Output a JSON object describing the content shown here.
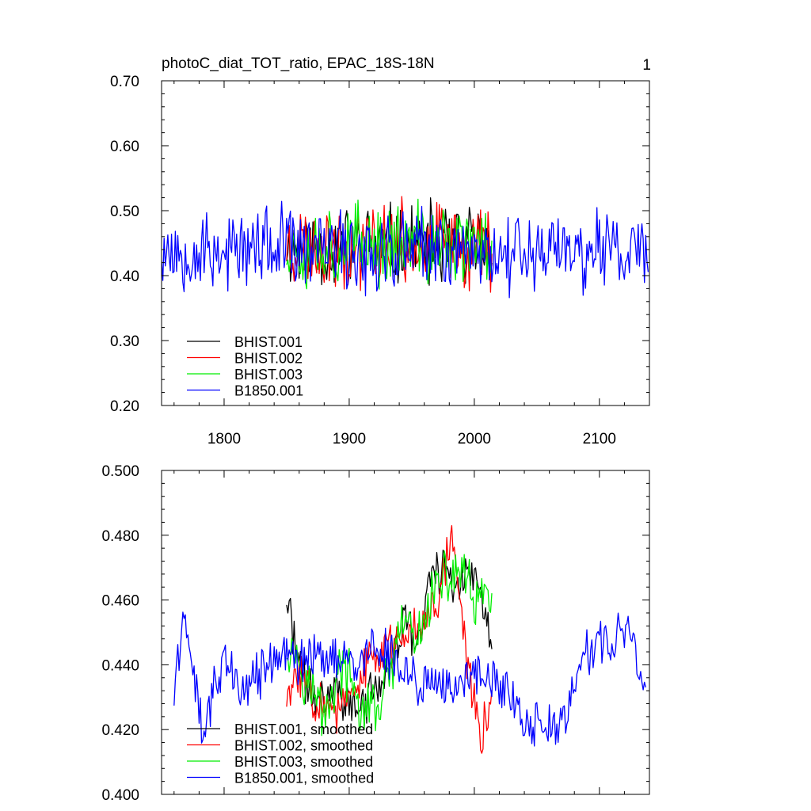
{
  "chart_data": [
    {
      "type": "line",
      "title": "photoC_diat_TOT_ratio, EPAC_18S-18N",
      "page_number": "1",
      "xlim": [
        1750,
        2140
      ],
      "ylim": [
        0.2,
        0.7
      ],
      "x_ticks": [
        "1800",
        "1900",
        "2000",
        "2100"
      ],
      "y_ticks": [
        "0.20",
        "0.30",
        "0.40",
        "0.50",
        "0.60",
        "0.70"
      ],
      "legend_position": "lower-left",
      "series": [
        {
          "name": "BHIST.001",
          "color": "#000000",
          "x_start": 1850,
          "x_end": 2014,
          "mean": 0.445,
          "amplitude": 0.078,
          "seed": 11
        },
        {
          "name": "BHIST.002",
          "color": "#ff0000",
          "x_start": 1850,
          "x_end": 2014,
          "mean": 0.448,
          "amplitude": 0.078,
          "seed": 23
        },
        {
          "name": "BHIST.003",
          "color": "#00ee00",
          "x_start": 1850,
          "x_end": 2014,
          "mean": 0.447,
          "amplitude": 0.078,
          "seed": 37
        },
        {
          "name": "B1850.001",
          "color": "#0000ff",
          "x_start": 1750,
          "x_end": 2139,
          "mean": 0.44,
          "amplitude": 0.078,
          "seed": 53
        }
      ]
    },
    {
      "type": "line",
      "title": "",
      "xlim": [
        1750,
        2140
      ],
      "ylim": [
        0.4,
        0.5
      ],
      "y_ticks": [
        "0.400",
        "0.420",
        "0.440",
        "0.460",
        "0.480",
        "0.500"
      ],
      "legend_position": "lower-left",
      "series": [
        {
          "name": "BHIST.001, smoothed",
          "color": "#000000",
          "x_start": 1850,
          "x_end": 2014,
          "anchors": [
            [
              1850,
              0.46
            ],
            [
              1860,
              0.44
            ],
            [
              1875,
              0.428
            ],
            [
              1890,
              0.434
            ],
            [
              1905,
              0.425
            ],
            [
              1920,
              0.432
            ],
            [
              1935,
              0.44
            ],
            [
              1945,
              0.455
            ],
            [
              1955,
              0.445
            ],
            [
              1965,
              0.468
            ],
            [
              1975,
              0.47
            ],
            [
              1985,
              0.465
            ],
            [
              1995,
              0.47
            ],
            [
              2005,
              0.46
            ],
            [
              2014,
              0.448
            ]
          ],
          "noise": 0.006,
          "seed": 71
        },
        {
          "name": "BHIST.002, smoothed",
          "color": "#ff0000",
          "x_start": 1850,
          "x_end": 2014,
          "anchors": [
            [
              1850,
              0.428
            ],
            [
              1860,
              0.438
            ],
            [
              1875,
              0.43
            ],
            [
              1885,
              0.425
            ],
            [
              1900,
              0.428
            ],
            [
              1915,
              0.44
            ],
            [
              1930,
              0.445
            ],
            [
              1945,
              0.45
            ],
            [
              1960,
              0.455
            ],
            [
              1972,
              0.462
            ],
            [
              1982,
              0.482
            ],
            [
              1990,
              0.455
            ],
            [
              1997,
              0.435
            ],
            [
              2005,
              0.418
            ],
            [
              2014,
              0.432
            ]
          ],
          "noise": 0.006,
          "seed": 83
        },
        {
          "name": "BHIST.003, smoothed",
          "color": "#00ee00",
          "x_start": 1850,
          "x_end": 2014,
          "anchors": [
            [
              1850,
              0.448
            ],
            [
              1860,
              0.442
            ],
            [
              1870,
              0.432
            ],
            [
              1880,
              0.425
            ],
            [
              1895,
              0.44
            ],
            [
              1910,
              0.425
            ],
            [
              1925,
              0.428
            ],
            [
              1935,
              0.44
            ],
            [
              1945,
              0.455
            ],
            [
              1955,
              0.445
            ],
            [
              1965,
              0.462
            ],
            [
              1975,
              0.465
            ],
            [
              1990,
              0.47
            ],
            [
              2000,
              0.458
            ],
            [
              2014,
              0.462
            ]
          ],
          "noise": 0.007,
          "seed": 97
        },
        {
          "name": "B1850.001, smoothed",
          "color": "#0000ff",
          "x_start": 1760,
          "x_end": 2137,
          "anchors": [
            [
              1760,
              0.432
            ],
            [
              1765,
              0.448
            ],
            [
              1770,
              0.455
            ],
            [
              1775,
              0.44
            ],
            [
              1780,
              0.425
            ],
            [
              1785,
              0.418
            ],
            [
              1790,
              0.432
            ],
            [
              1800,
              0.44
            ],
            [
              1815,
              0.432
            ],
            [
              1830,
              0.438
            ],
            [
              1845,
              0.444
            ],
            [
              1860,
              0.44
            ],
            [
              1875,
              0.445
            ],
            [
              1890,
              0.442
            ],
            [
              1905,
              0.438
            ],
            [
              1920,
              0.445
            ],
            [
              1935,
              0.442
            ],
            [
              1950,
              0.436
            ],
            [
              1960,
              0.432
            ],
            [
              1970,
              0.436
            ],
            [
              1985,
              0.432
            ],
            [
              1995,
              0.436
            ],
            [
              2005,
              0.438
            ],
            [
              2015,
              0.436
            ],
            [
              2025,
              0.432
            ],
            [
              2035,
              0.428
            ],
            [
              2045,
              0.42
            ],
            [
              2055,
              0.422
            ],
            [
              2065,
              0.418
            ],
            [
              2075,
              0.425
            ],
            [
              2085,
              0.442
            ],
            [
              2095,
              0.445
            ],
            [
              2105,
              0.45
            ],
            [
              2115,
              0.448
            ],
            [
              2125,
              0.45
            ],
            [
              2137,
              0.432
            ]
          ],
          "noise": 0.006,
          "seed": 131
        }
      ]
    }
  ]
}
